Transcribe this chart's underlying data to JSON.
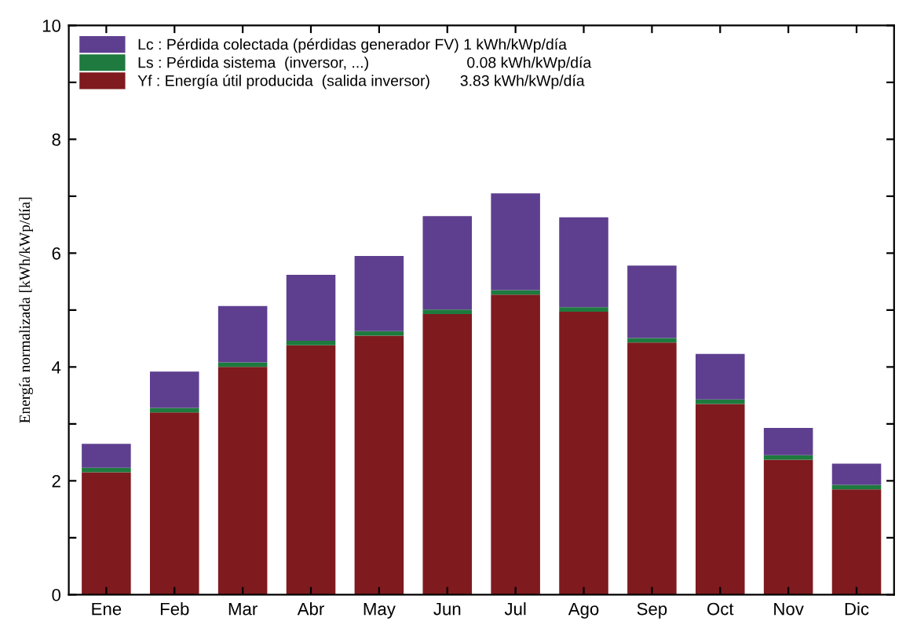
{
  "chart_data": {
    "type": "bar",
    "stacked": true,
    "ylabel": "Energía normalizada [kWh/kWp/día]",
    "categories": [
      "Ene",
      "Feb",
      "Mar",
      "Abr",
      "May",
      "Jun",
      "Jul",
      "Ago",
      "Sep",
      "Oct",
      "Nov",
      "Dic"
    ],
    "series": [
      {
        "name": "Yf : Energía útil producida  (salida inversor)       3.83 kWh/kWp/día",
        "color": "#7f1a1e",
        "values": [
          2.15,
          3.2,
          4.0,
          4.38,
          4.55,
          4.93,
          5.27,
          4.97,
          4.43,
          3.35,
          2.37,
          1.85
        ]
      },
      {
        "name": "Ls : Pérdida sistema  (inversor, ...)                       0.08 kWh/kWp/día",
        "color": "#1e7a3e",
        "values": [
          0.08,
          0.08,
          0.08,
          0.08,
          0.08,
          0.08,
          0.08,
          0.08,
          0.08,
          0.08,
          0.08,
          0.08
        ]
      },
      {
        "name": "Lc : Pérdida colectada (pérdidas generador FV) 1 kWh/kWp/día",
        "color": "#5e3f8f",
        "values": [
          0.42,
          0.64,
          0.99,
          1.16,
          1.32,
          1.64,
          1.7,
          1.58,
          1.27,
          0.8,
          0.48,
          0.37
        ]
      }
    ],
    "ylim": [
      0,
      10
    ],
    "yticks": [
      0,
      {
        "value": 1,
        "label": null
      },
      2,
      {
        "value": 3,
        "label": null
      },
      4,
      {
        "value": 5,
        "label": null
      },
      6,
      {
        "value": 7,
        "label": null
      },
      8,
      {
        "value": 9,
        "label": null
      },
      10
    ],
    "legend": "top left",
    "grid": false
  }
}
